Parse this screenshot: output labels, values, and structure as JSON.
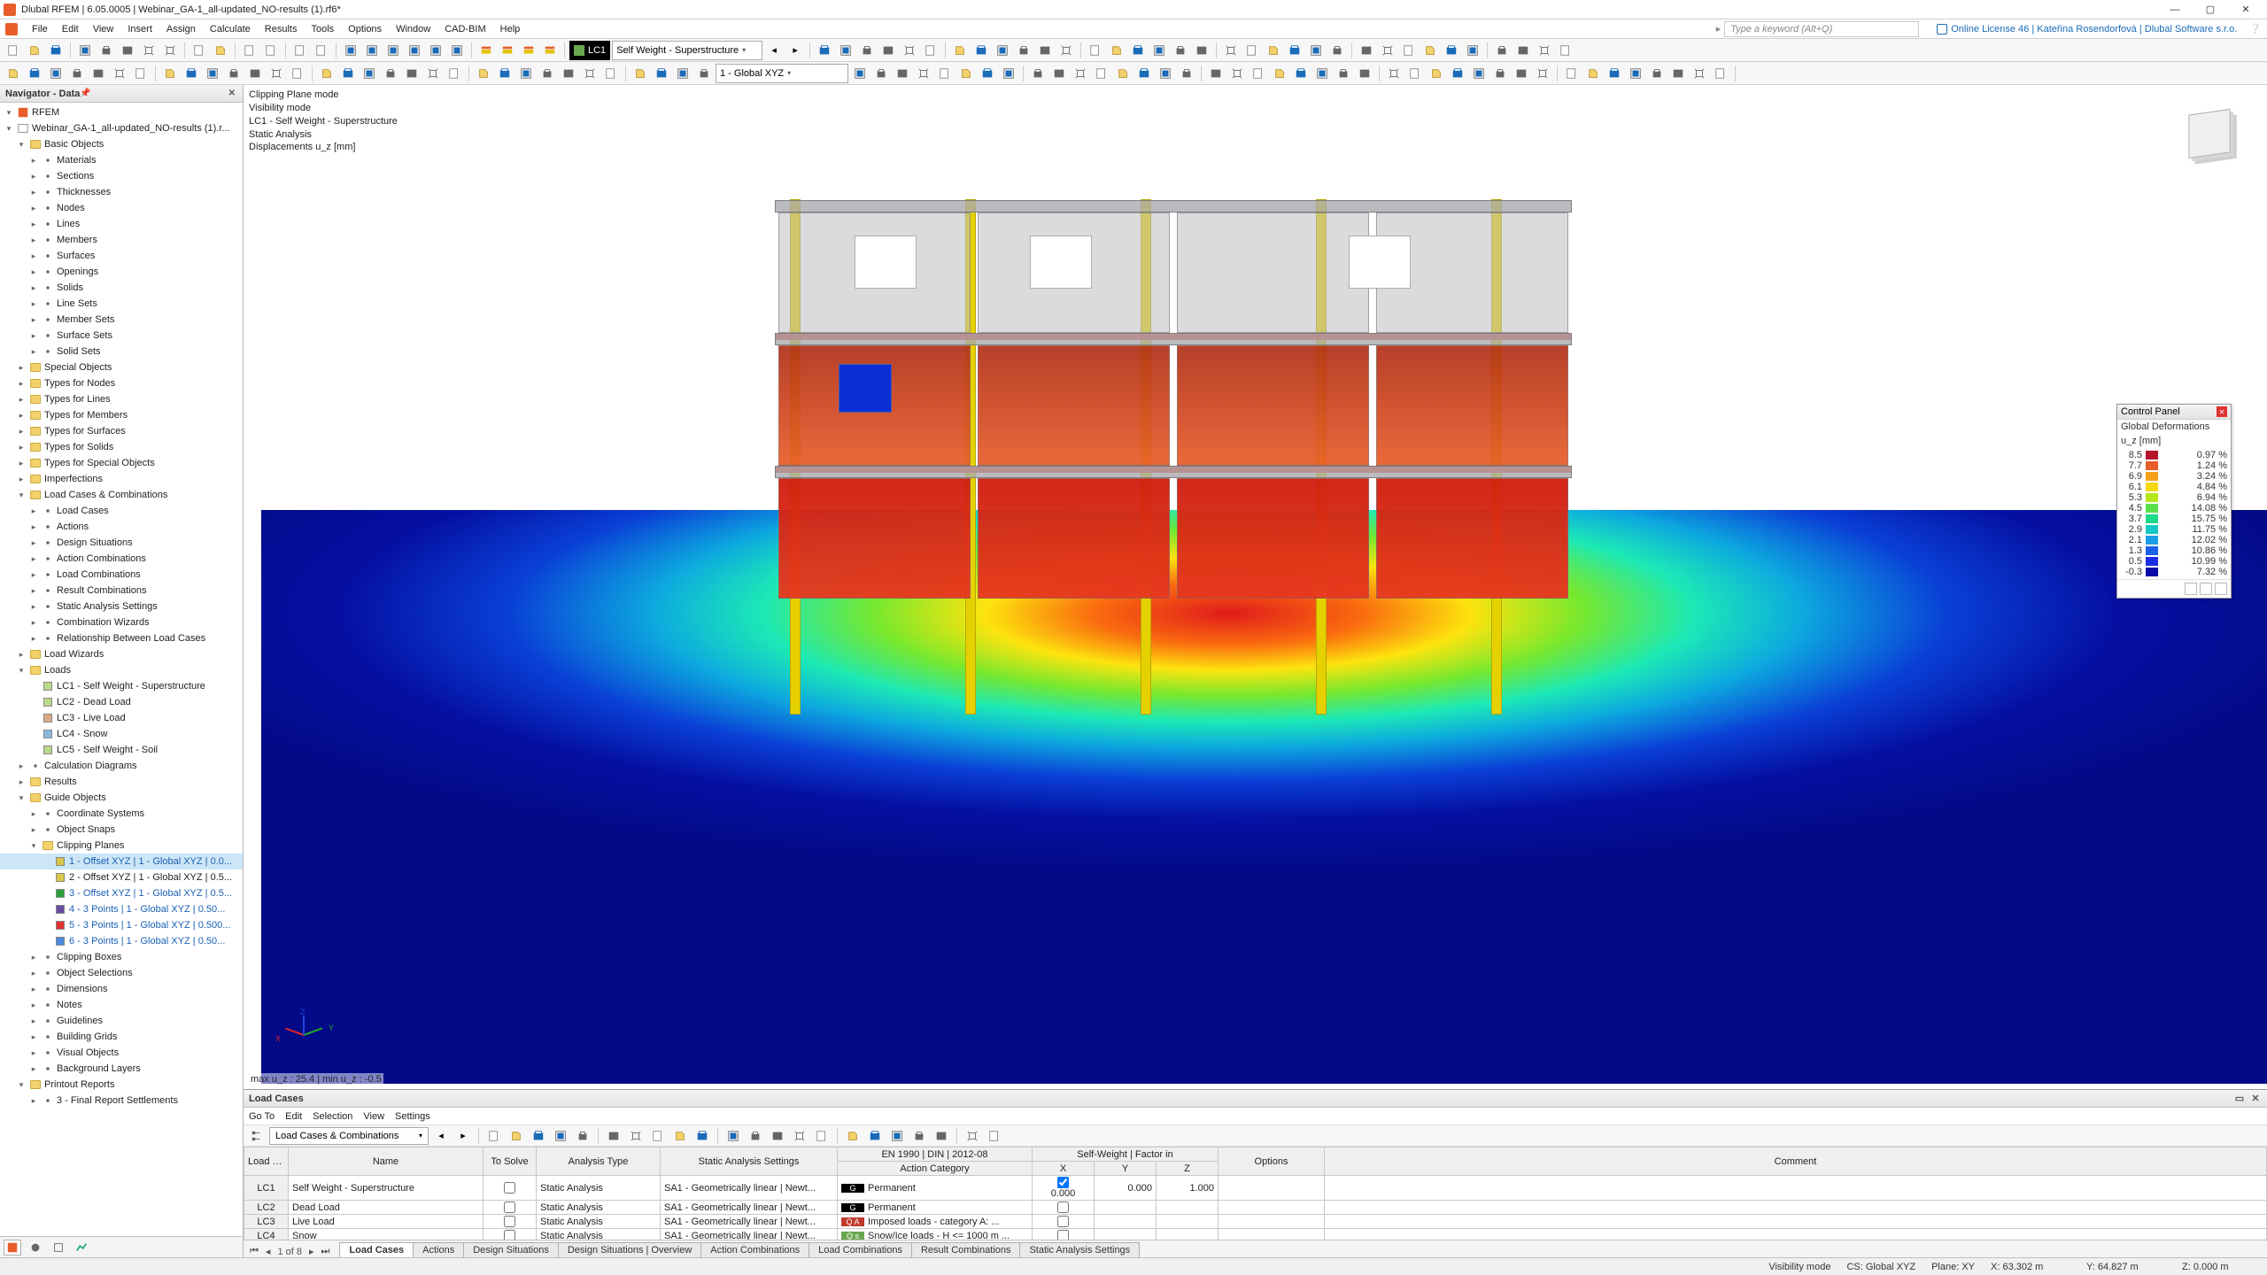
{
  "app": {
    "title": "Dlubal RFEM | 6.05.0005 | Webinar_GA-1_all-updated_NO-results (1).rf6*",
    "search_placeholder": "Type a keyword (Alt+Q)",
    "license": "Online License 46 | Kateřina Rosendorfová | Dlubal Software s.r.o."
  },
  "menu": [
    "File",
    "Edit",
    "View",
    "Insert",
    "Assign",
    "Calculate",
    "Results",
    "Tools",
    "Options",
    "Window",
    "CAD-BIM",
    "Help"
  ],
  "toolbar2": {
    "lc_label": "LC1",
    "lc_desc": "Self Weight - Superstructure",
    "coord_sys": "1 - Global XYZ"
  },
  "nav": {
    "title": "Navigator - Data",
    "root": "RFEM",
    "model": "Webinar_GA-1_all-updated_NO-results (1).r...",
    "tree": [
      {
        "d": 1,
        "t": "twf",
        "l": "Basic Objects",
        "open": true
      },
      {
        "d": 2,
        "t": "it",
        "l": "Materials"
      },
      {
        "d": 2,
        "t": "it",
        "l": "Sections"
      },
      {
        "d": 2,
        "t": "it",
        "l": "Thicknesses"
      },
      {
        "d": 2,
        "t": "it",
        "l": "Nodes"
      },
      {
        "d": 2,
        "t": "it",
        "l": "Lines"
      },
      {
        "d": 2,
        "t": "it",
        "l": "Members"
      },
      {
        "d": 2,
        "t": "it",
        "l": "Surfaces"
      },
      {
        "d": 2,
        "t": "it",
        "l": "Openings"
      },
      {
        "d": 2,
        "t": "it",
        "l": "Solids"
      },
      {
        "d": 2,
        "t": "it",
        "l": "Line Sets"
      },
      {
        "d": 2,
        "t": "it",
        "l": "Member Sets"
      },
      {
        "d": 2,
        "t": "it",
        "l": "Surface Sets"
      },
      {
        "d": 2,
        "t": "it",
        "l": "Solid Sets"
      },
      {
        "d": 1,
        "t": "twf",
        "l": "Special Objects"
      },
      {
        "d": 1,
        "t": "twf",
        "l": "Types for Nodes"
      },
      {
        "d": 1,
        "t": "twf",
        "l": "Types for Lines"
      },
      {
        "d": 1,
        "t": "twf",
        "l": "Types for Members"
      },
      {
        "d": 1,
        "t": "twf",
        "l": "Types for Surfaces"
      },
      {
        "d": 1,
        "t": "twf",
        "l": "Types for Solids"
      },
      {
        "d": 1,
        "t": "twf",
        "l": "Types for Special Objects"
      },
      {
        "d": 1,
        "t": "twf",
        "l": "Imperfections"
      },
      {
        "d": 1,
        "t": "twf",
        "l": "Load Cases & Combinations",
        "open": true
      },
      {
        "d": 2,
        "t": "it",
        "l": "Load Cases"
      },
      {
        "d": 2,
        "t": "it",
        "l": "Actions"
      },
      {
        "d": 2,
        "t": "it",
        "l": "Design Situations"
      },
      {
        "d": 2,
        "t": "it",
        "l": "Action Combinations"
      },
      {
        "d": 2,
        "t": "it",
        "l": "Load Combinations"
      },
      {
        "d": 2,
        "t": "it",
        "l": "Result Combinations"
      },
      {
        "d": 2,
        "t": "it",
        "l": "Static Analysis Settings"
      },
      {
        "d": 2,
        "t": "it",
        "l": "Combination Wizards"
      },
      {
        "d": 2,
        "t": "it",
        "l": "Relationship Between Load Cases"
      },
      {
        "d": 1,
        "t": "twf",
        "l": "Load Wizards"
      },
      {
        "d": 1,
        "t": "twf",
        "l": "Loads",
        "open": true
      },
      {
        "d": 2,
        "t": "lc",
        "l": "LC1 - Self Weight - Superstructure",
        "c": "#b8d98a"
      },
      {
        "d": 2,
        "t": "lc",
        "l": "LC2 - Dead Load",
        "c": "#b8d98a"
      },
      {
        "d": 2,
        "t": "lc",
        "l": "LC3 - Live Load",
        "c": "#d9a98a"
      },
      {
        "d": 2,
        "t": "lc",
        "l": "LC4 - Snow",
        "c": "#8ab8d9"
      },
      {
        "d": 2,
        "t": "lc",
        "l": "LC5 - Self Weight - Soil",
        "c": "#b8d98a"
      },
      {
        "d": 1,
        "t": "it",
        "l": "Calculation Diagrams"
      },
      {
        "d": 1,
        "t": "twf",
        "l": "Results"
      },
      {
        "d": 1,
        "t": "twf",
        "l": "Guide Objects",
        "open": true
      },
      {
        "d": 2,
        "t": "it",
        "l": "Coordinate Systems"
      },
      {
        "d": 2,
        "t": "it",
        "l": "Object Snaps"
      },
      {
        "d": 2,
        "t": "twf",
        "l": "Clipping Planes",
        "open": true
      },
      {
        "d": 3,
        "t": "cp",
        "l": "1 - Offset XYZ | 1 - Global XYZ | 0.0...",
        "c": "#d9c64a",
        "sel": true,
        "blue": true
      },
      {
        "d": 3,
        "t": "cp",
        "l": "2 - Offset XYZ | 1 - Global XYZ | 0.5...",
        "c": "#d9c64a"
      },
      {
        "d": 3,
        "t": "cp",
        "l": "3 - Offset XYZ | 1 - Global XYZ | 0.5...",
        "c": "#2a9d3a",
        "blue": true
      },
      {
        "d": 3,
        "t": "cp",
        "l": "4 - 3 Points | 1 - Global XYZ | 0.50...",
        "c": "#6a4aa0",
        "blue": true
      },
      {
        "d": 3,
        "t": "cp",
        "l": "5 - 3 Points | 1 - Global XYZ | 0.500...",
        "c": "#d33",
        "blue": true
      },
      {
        "d": 3,
        "t": "cp",
        "l": "6 - 3 Points | 1 - Global XYZ | 0.50...",
        "c": "#4a8ad9",
        "blue": true
      },
      {
        "d": 2,
        "t": "it",
        "l": "Clipping Boxes"
      },
      {
        "d": 2,
        "t": "it",
        "l": "Object Selections"
      },
      {
        "d": 2,
        "t": "it",
        "l": "Dimensions"
      },
      {
        "d": 2,
        "t": "it",
        "l": "Notes"
      },
      {
        "d": 2,
        "t": "it",
        "l": "Guidelines"
      },
      {
        "d": 2,
        "t": "it",
        "l": "Building Grids"
      },
      {
        "d": 2,
        "t": "it",
        "l": "Visual Objects"
      },
      {
        "d": 2,
        "t": "it",
        "l": "Background Layers"
      },
      {
        "d": 1,
        "t": "twf",
        "l": "Printout Reports",
        "open": true
      },
      {
        "d": 2,
        "t": "it",
        "l": "3 - Final Report Settlements"
      }
    ]
  },
  "viewport": {
    "info": [
      "Clipping Plane mode",
      "Visibility mode",
      "LC1 - Self Weight - Superstructure",
      "Static Analysis",
      "Displacements u_z [mm]"
    ],
    "maxmin": "max u_z : 25.4 | min u_z : -0.5"
  },
  "legend": {
    "title": "Control Panel",
    "subtitle": "Global Deformations",
    "unit": "u_z [mm]",
    "rows": [
      {
        "c": "#b5162b",
        "v": "8.5",
        "p": "0.97 %"
      },
      {
        "c": "#e85d2a",
        "v": "7.7",
        "p": "1.24 %"
      },
      {
        "c": "#f6a01a",
        "v": "6.9",
        "p": "3.24 %"
      },
      {
        "c": "#f6d80e",
        "v": "6.1",
        "p": "4.84 %"
      },
      {
        "c": "#b6e61a",
        "v": "5.3",
        "p": "6.94 %"
      },
      {
        "c": "#5ae04a",
        "v": "4.5",
        "p": "14.08 %"
      },
      {
        "c": "#1ad98a",
        "v": "3.7",
        "p": "15.75 %"
      },
      {
        "c": "#14c7c4",
        "v": "2.9",
        "p": "11.75 %"
      },
      {
        "c": "#1a9de6",
        "v": "2.1",
        "p": "12.02 %"
      },
      {
        "c": "#1a5fe6",
        "v": "1.3",
        "p": "10.86 %"
      },
      {
        "c": "#1a2be6",
        "v": "0.5",
        "p": "10.99 %"
      },
      {
        "c": "#0a0aa8",
        "v": "-0.3",
        "p": "7.32 %"
      }
    ]
  },
  "table": {
    "title": "Load Cases",
    "menu": [
      "Go To",
      "Edit",
      "Selection",
      "View",
      "Settings"
    ],
    "dropdown": "Load Cases & Combinations",
    "header_group": "EN 1990 | DIN | 2012-08",
    "header_sw": "Self-Weight | Factor in",
    "cols": [
      "Load Case",
      "Name",
      "To Solve",
      "Analysis Type",
      "Static Analysis Settings",
      "Action Category",
      "X",
      "Y",
      "Z",
      "Options",
      "Comment"
    ],
    "rows": [
      {
        "lc": "LC1",
        "name": "Self Weight - Superstructure",
        "solve": false,
        "atype": "Static Analysis",
        "sas": "SA1 - Geometrically linear | Newt...",
        "cat_tag": "G",
        "cat_color": "#000",
        "cat": "Permanent",
        "sw": true,
        "x": "0.000",
        "y": "0.000",
        "z": "1.000"
      },
      {
        "lc": "LC2",
        "name": "Dead Load",
        "solve": false,
        "atype": "Static Analysis",
        "sas": "SA1 - Geometrically linear | Newt...",
        "cat_tag": "G",
        "cat_color": "#000",
        "cat": "Permanent",
        "sw": false,
        "x": "",
        "y": "",
        "z": ""
      },
      {
        "lc": "LC3",
        "name": "Live Load",
        "solve": false,
        "atype": "Static Analysis",
        "sas": "SA1 - Geometrically linear | Newt...",
        "cat_tag": "Q A",
        "cat_color": "#c0392b",
        "cat": "Imposed loads - category A: ...",
        "sw": false,
        "x": "",
        "y": "",
        "z": ""
      },
      {
        "lc": "LC4",
        "name": "Snow",
        "solve": false,
        "atype": "Static Analysis",
        "sas": "SA1 - Geometrically linear | Newt...",
        "cat_tag": "Q s",
        "cat_color": "#6aa84f",
        "cat": "Snow/Ice loads - H <= 1000 m ...",
        "sw": false,
        "x": "",
        "y": "",
        "z": ""
      }
    ],
    "tabs_nav": "1 of 8",
    "tabs": [
      "Load Cases",
      "Actions",
      "Design Situations",
      "Design Situations | Overview",
      "Action Combinations",
      "Load Combinations",
      "Result Combinations",
      "Static Analysis Settings"
    ]
  },
  "status": {
    "vis": "Visibility mode",
    "cs": "CS: Global XYZ",
    "plane": "Plane: XY",
    "x": "X: 63.302 m",
    "y": "Y: 64.827 m",
    "z": "Z: 0.000 m"
  },
  "colors": {
    "accent": "#e85d2a"
  }
}
